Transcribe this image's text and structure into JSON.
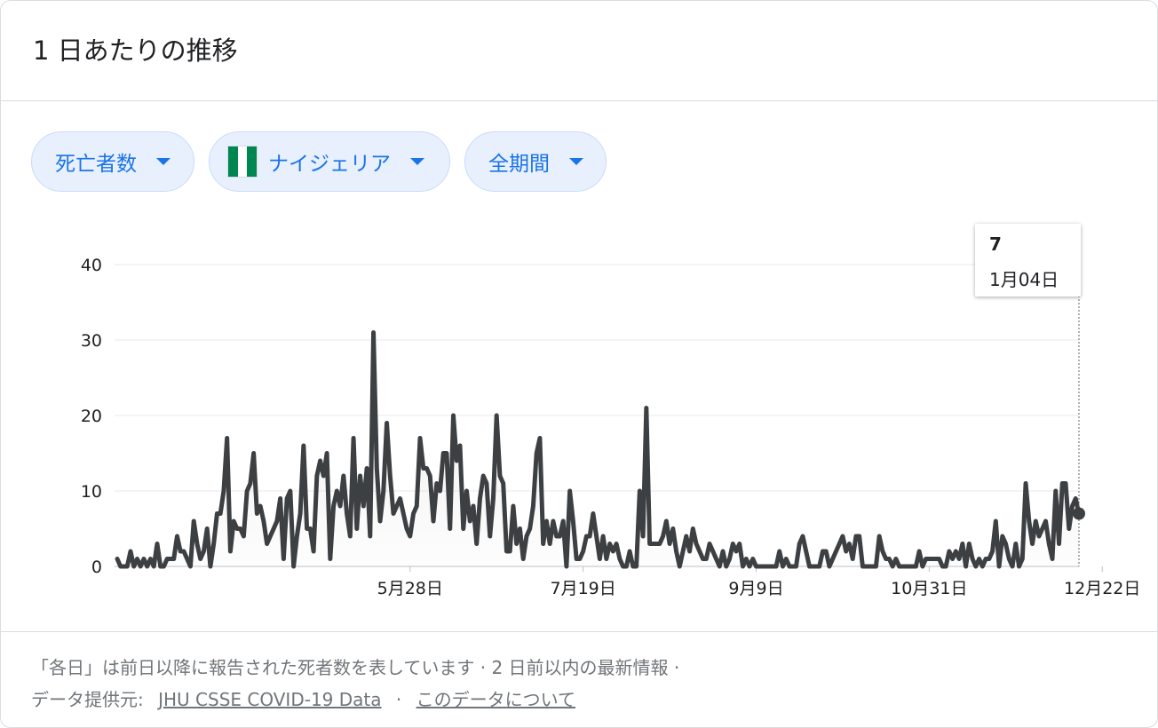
{
  "card": {
    "title": "1 日あたりの推移",
    "chips": {
      "metric": "死亡者数",
      "country": "ナイジェリア",
      "period": "全期間"
    },
    "flag_colors": [
      "#008751",
      "#ffffff",
      "#008751"
    ],
    "tooltip": {
      "value": "7",
      "date": "1月04日"
    },
    "footer": {
      "line1": "「各日」は前日以降に報告された死者数を表しています · 2 日前以内の最新情報 ·",
      "source_label": "データ提供元:",
      "source_link": "JHU CSSE COVID-19 Data",
      "separator": "·",
      "about_link": "このデータについて"
    }
  },
  "colors": {
    "accent": "#1a73e8",
    "chip_bg": "#e8f0fe",
    "line": "#3c4043"
  },
  "chart_data": {
    "type": "area",
    "title": "",
    "xlabel": "",
    "ylabel": "",
    "ylim": [
      0,
      40
    ],
    "yticks": [
      0,
      10,
      20,
      30,
      40
    ],
    "x_tick_labels": [
      {
        "label": "5月28日",
        "day": 88
      },
      {
        "label": "7月19日",
        "day": 140
      },
      {
        "label": "9月9日",
        "day": 192
      },
      {
        "label": "10月31日",
        "day": 244
      },
      {
        "label": "12月22日",
        "day": 296
      }
    ],
    "grid": true,
    "series": [
      {
        "values": [
          1,
          0,
          0,
          0,
          2,
          0,
          1,
          0,
          1,
          0,
          1,
          0,
          3,
          0,
          0,
          1,
          1,
          1,
          4,
          2,
          2,
          1,
          0,
          6,
          3,
          1,
          2,
          5,
          0,
          3,
          7,
          7,
          10,
          17,
          2,
          6,
          5,
          5,
          4,
          10,
          11,
          15,
          7,
          8,
          6,
          3,
          4,
          5,
          6,
          9,
          1,
          9,
          10,
          0,
          4,
          7,
          16,
          5,
          5,
          2,
          12,
          14,
          12,
          15,
          1,
          8,
          10,
          8,
          12,
          7,
          4,
          17,
          5,
          12,
          8,
          13,
          4,
          31,
          13,
          6,
          10,
          19,
          12,
          7,
          8,
          9,
          7,
          5,
          4,
          7,
          8,
          17,
          13,
          13,
          12,
          6,
          11,
          10,
          15,
          15,
          5,
          20,
          14,
          16,
          5,
          10,
          6,
          8,
          3,
          9,
          12,
          11,
          4,
          9,
          20,
          12,
          11,
          2,
          2,
          8,
          3,
          5,
          1,
          4,
          5,
          8,
          15,
          17,
          3,
          6,
          3,
          6,
          4,
          4,
          6,
          0,
          10,
          6,
          1,
          1,
          2,
          4,
          4,
          7,
          4,
          1,
          4,
          1,
          3,
          2,
          3,
          1,
          0,
          0,
          2,
          0,
          0,
          10,
          4,
          21,
          3,
          3,
          3,
          3,
          4,
          6,
          3,
          5,
          2,
          0,
          2,
          4,
          2,
          5,
          3,
          2,
          1,
          1,
          3,
          2,
          1,
          0,
          2,
          0,
          1,
          3,
          2,
          3,
          0,
          1,
          0,
          1,
          0,
          0,
          0,
          0,
          0,
          0,
          0,
          2,
          0,
          1,
          0,
          0,
          0,
          3,
          4,
          2,
          0,
          0,
          0,
          0,
          2,
          2,
          0,
          1,
          2,
          3,
          4,
          2,
          3,
          1,
          4,
          4,
          0,
          0,
          0,
          0,
          0,
          4,
          2,
          1,
          1,
          0,
          1,
          0,
          0,
          0,
          0,
          0,
          0,
          2,
          0,
          1,
          1,
          1,
          1,
          1,
          0,
          0,
          2,
          1,
          2,
          1,
          3,
          0,
          3,
          1,
          0,
          1,
          0,
          1,
          1,
          2,
          6,
          0,
          4,
          3,
          1,
          0,
          3,
          0,
          1,
          11,
          6,
          3,
          6,
          4,
          5,
          6,
          3,
          1,
          10,
          3,
          11,
          11,
          5,
          8,
          9,
          7
        ]
      }
    ]
  }
}
